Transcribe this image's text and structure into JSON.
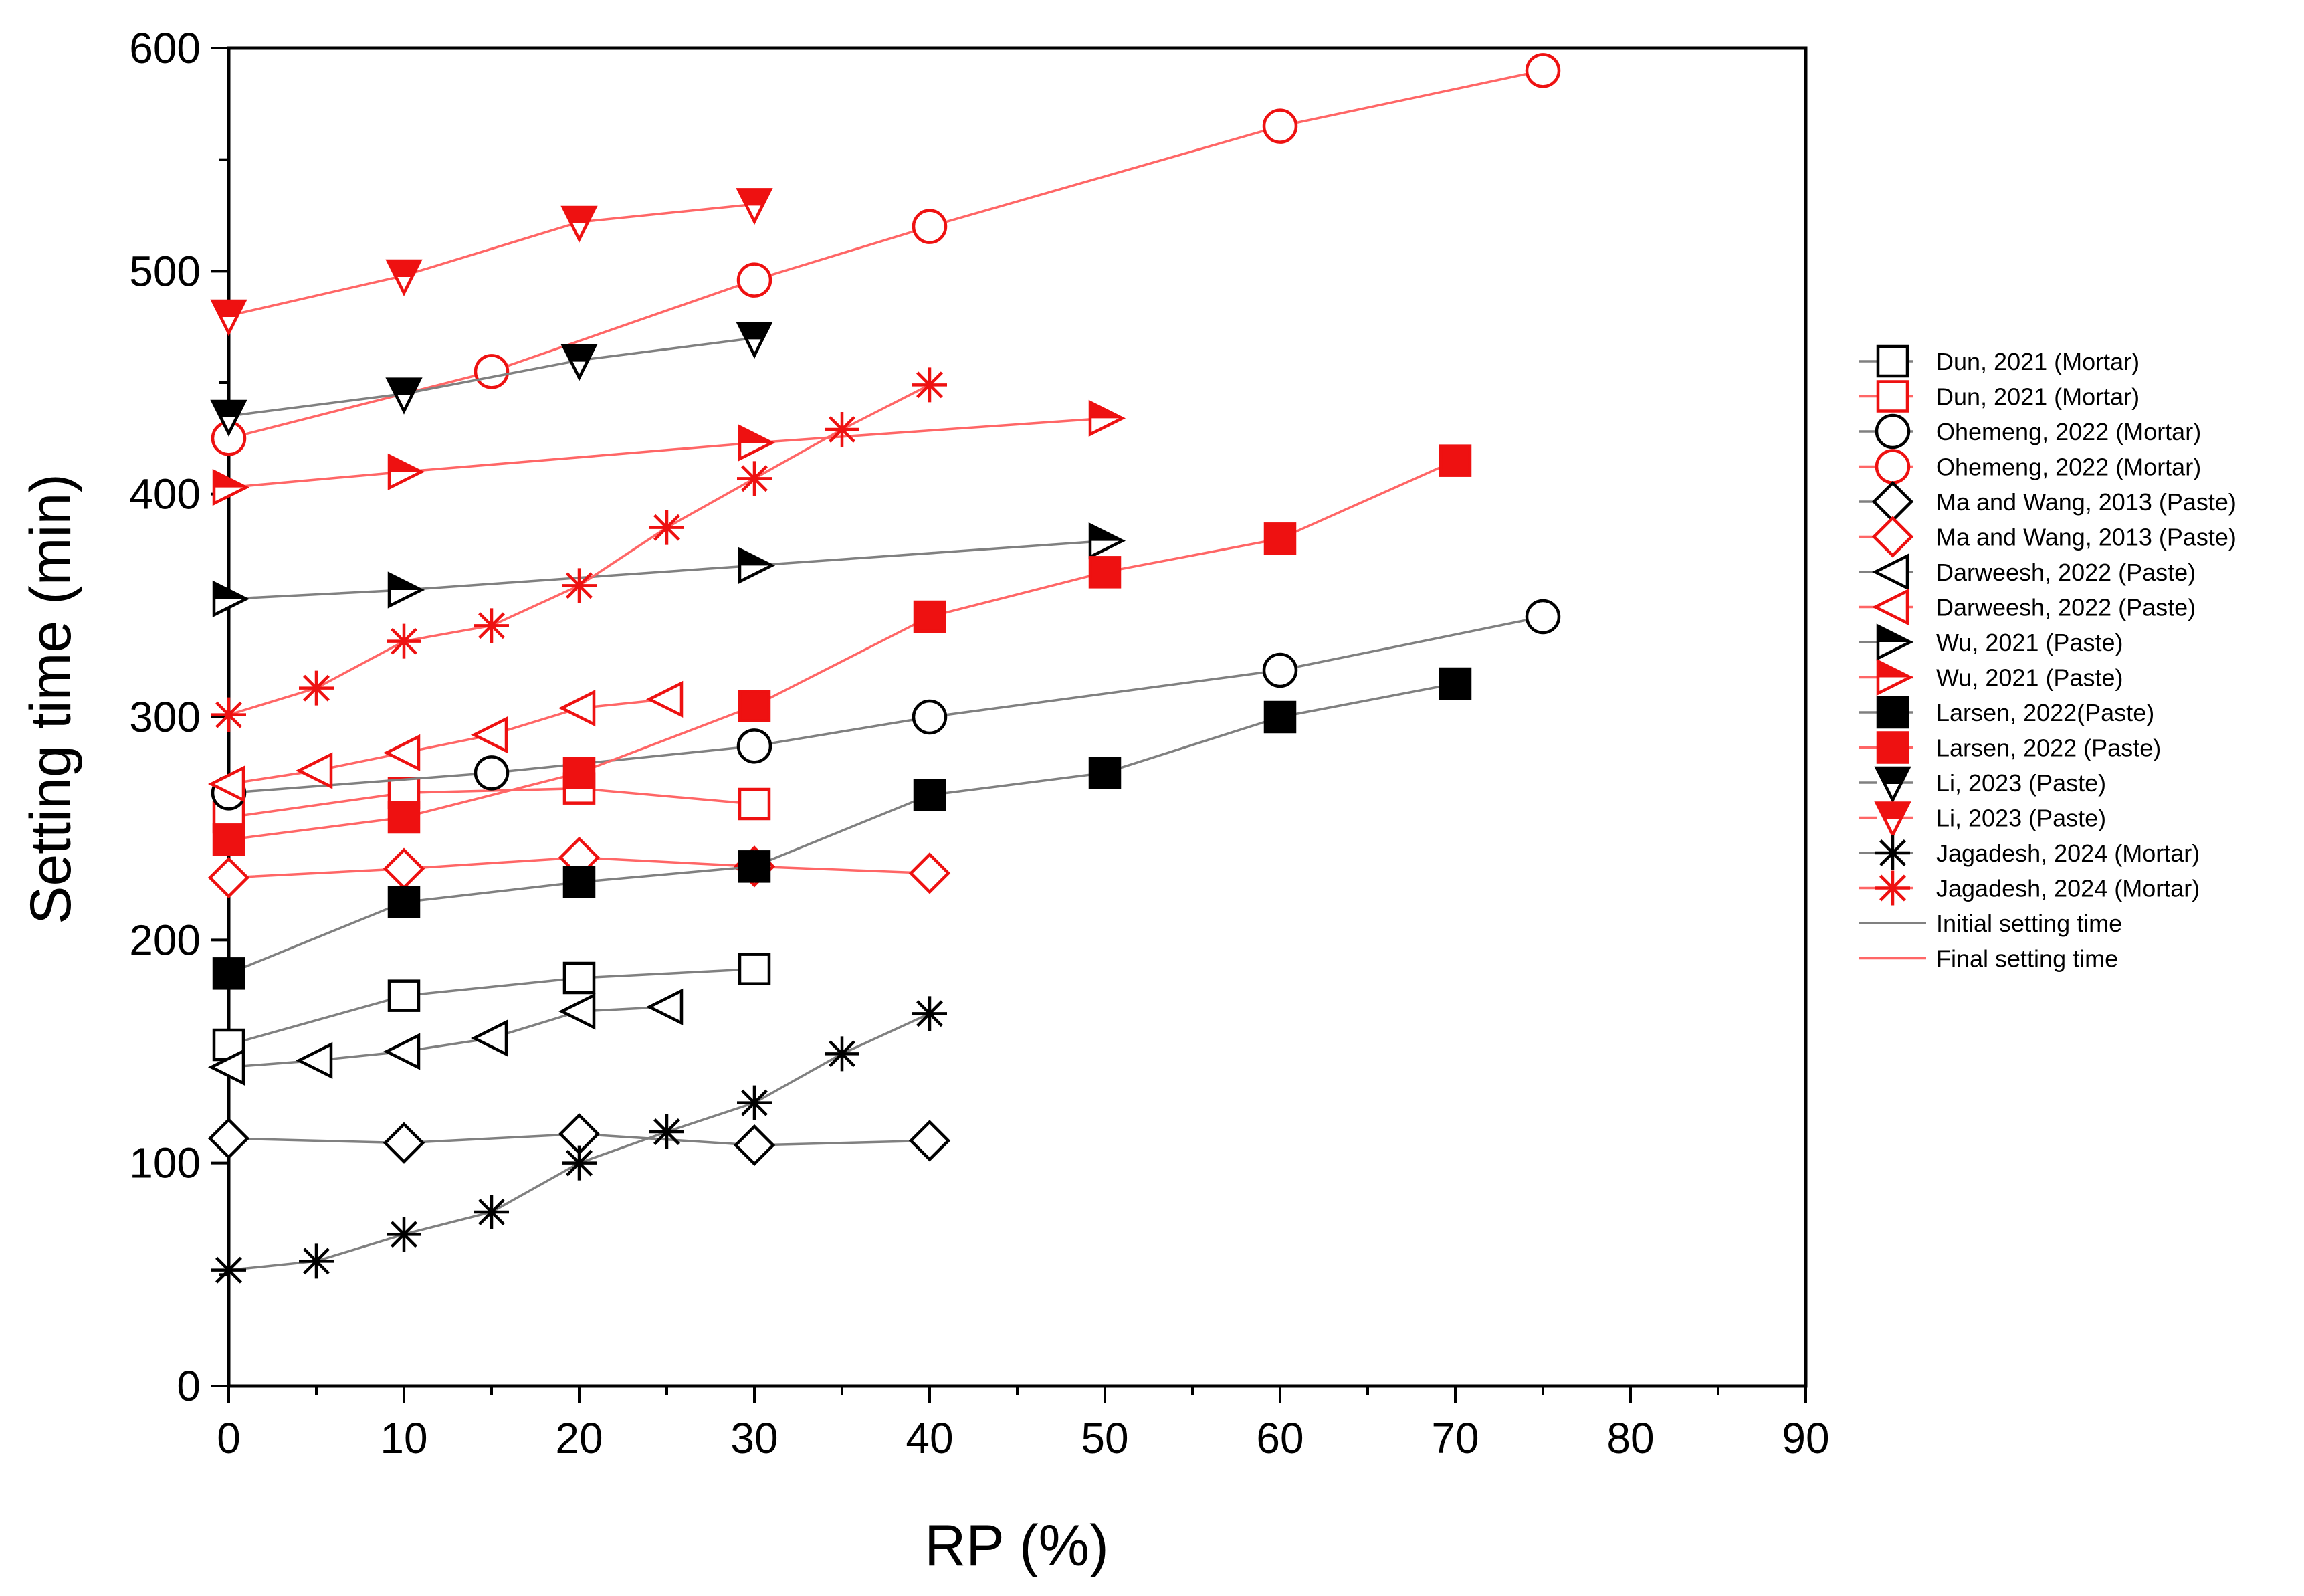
{
  "chart_data": {
    "type": "line",
    "title": "",
    "xlabel": "RP (%)",
    "ylabel": "Setting time (min)",
    "xlim": [
      0,
      90
    ],
    "ylim": [
      0,
      600
    ],
    "xticks": [
      "0",
      "10",
      "20",
      "30",
      "40",
      "50",
      "60",
      "70",
      "80",
      "90"
    ],
    "yticks": [
      "0",
      "100",
      "200",
      "300",
      "400",
      "500",
      "600"
    ],
    "grid": false,
    "legend_position": "right",
    "colors": {
      "initial": "#808080",
      "final": "#ff6666",
      "marker_black": "#000000",
      "marker_red": "#ee1111"
    },
    "series": [
      {
        "name": "Dun, 2021 (Mortar)",
        "kind": "initial",
        "marker": "square",
        "fill": "open",
        "x": [
          0,
          10,
          20,
          30
        ],
        "y": [
          153,
          175,
          183,
          187
        ]
      },
      {
        "name": "Dun, 2021 (Mortar)",
        "kind": "final",
        "marker": "square",
        "fill": "open",
        "x": [
          0,
          10,
          20,
          30
        ],
        "y": [
          255,
          266,
          268,
          261
        ]
      },
      {
        "name": "Ohemeng, 2022 (Mortar)",
        "kind": "initial",
        "marker": "circle",
        "fill": "open",
        "x": [
          0,
          15,
          30,
          40,
          60,
          75
        ],
        "y": [
          266,
          275,
          287,
          300,
          321,
          345
        ]
      },
      {
        "name": "Ohemeng, 2022 (Mortar)",
        "kind": "final",
        "marker": "circle",
        "fill": "open",
        "x": [
          0,
          15,
          30,
          40,
          60,
          75
        ],
        "y": [
          425,
          455,
          496,
          520,
          565,
          590
        ]
      },
      {
        "name": "Ma and Wang, 2013 (Paste)",
        "kind": "initial",
        "marker": "diamond",
        "fill": "open",
        "x": [
          0,
          10,
          20,
          30,
          40
        ],
        "y": [
          111,
          109,
          113,
          108,
          110
        ]
      },
      {
        "name": "Ma and Wang, 2013 (Paste)",
        "kind": "final",
        "marker": "diamond",
        "fill": "open",
        "x": [
          0,
          10,
          20,
          30,
          40
        ],
        "y": [
          228,
          232,
          237,
          233,
          230
        ]
      },
      {
        "name": "Darweesh, 2022 (Paste)",
        "kind": "initial",
        "marker": "triangle-left",
        "fill": "open",
        "x": [
          0,
          5,
          10,
          15,
          20,
          25
        ],
        "y": [
          143,
          146,
          150,
          156,
          168,
          170
        ]
      },
      {
        "name": "Darweesh, 2022 (Paste)",
        "kind": "final",
        "marker": "triangle-left",
        "fill": "open",
        "x": [
          0,
          5,
          10,
          15,
          20,
          25
        ],
        "y": [
          270,
          276,
          284,
          292,
          304,
          308
        ]
      },
      {
        "name": "Wu, 2021 (Paste)",
        "kind": "initial",
        "marker": "triangle-right",
        "fill": "half",
        "x": [
          0,
          10,
          30,
          50
        ],
        "y": [
          353,
          357,
          368,
          379
        ]
      },
      {
        "name": "Wu, 2021 (Paste)",
        "kind": "final",
        "marker": "triangle-right",
        "fill": "half",
        "x": [
          0,
          10,
          30,
          50
        ],
        "y": [
          403,
          410,
          423,
          434
        ]
      },
      {
        "name": "Larsen, 2022(Paste)",
        "kind": "initial",
        "marker": "square",
        "fill": "solid",
        "x": [
          0,
          10,
          20,
          30,
          40,
          50,
          60,
          70
        ],
        "y": [
          185,
          217,
          226,
          233,
          265,
          275,
          300,
          315
        ]
      },
      {
        "name": "Larsen, 2022 (Paste)",
        "kind": "final",
        "marker": "square",
        "fill": "solid",
        "x": [
          0,
          10,
          20,
          30,
          40,
          50,
          60,
          70
        ],
        "y": [
          245,
          255,
          275,
          305,
          345,
          365,
          380,
          415
        ]
      },
      {
        "name": "Li, 2023 (Paste)",
        "kind": "initial",
        "marker": "triangle-down",
        "fill": "half",
        "x": [
          0,
          10,
          20,
          30
        ],
        "y": [
          435,
          445,
          460,
          470
        ]
      },
      {
        "name": "Li, 2023 (Paste)",
        "kind": "final",
        "marker": "triangle-down",
        "fill": "half",
        "x": [
          0,
          10,
          20,
          30
        ],
        "y": [
          480,
          498,
          522,
          530
        ]
      },
      {
        "name": "Jagadesh, 2024 (Mortar)",
        "kind": "initial",
        "marker": "star",
        "fill": "open",
        "x": [
          0,
          5,
          10,
          15,
          20,
          25,
          30,
          35,
          40
        ],
        "y": [
          52,
          56,
          68,
          78,
          100,
          114,
          127,
          149,
          167
        ]
      },
      {
        "name": "Jagadesh, 2024 (Mortar)",
        "kind": "final",
        "marker": "star",
        "fill": "open",
        "x": [
          0,
          5,
          10,
          15,
          20,
          25,
          30,
          35,
          40
        ],
        "y": [
          301,
          313,
          334,
          341,
          359,
          385,
          407,
          429,
          449
        ]
      }
    ],
    "legend_extra": [
      {
        "name": "Initial setting time",
        "kind": "initial"
      },
      {
        "name": "Final setting time",
        "kind": "final"
      }
    ]
  }
}
